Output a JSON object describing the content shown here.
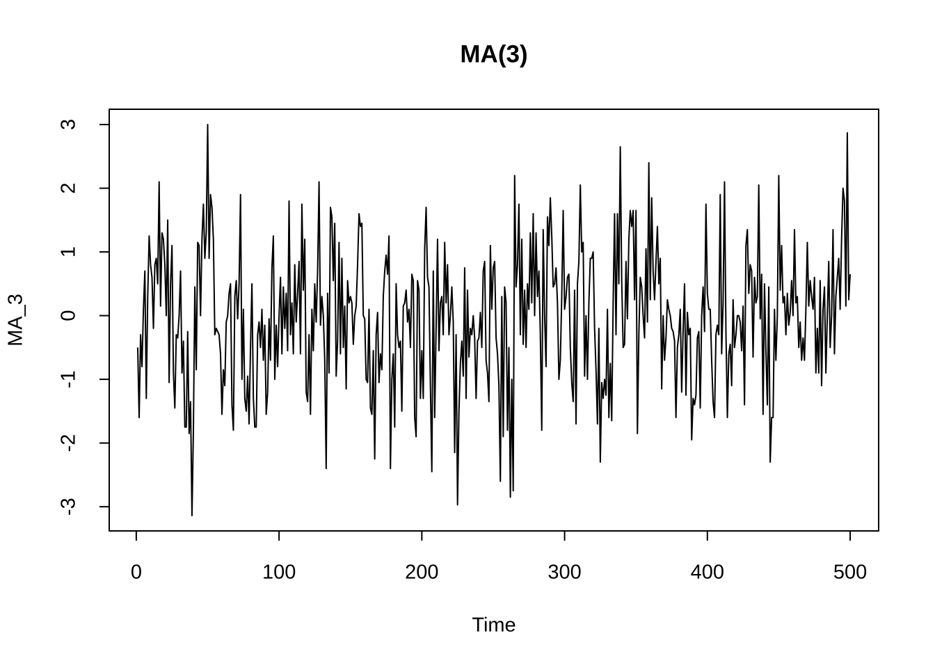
{
  "chart_data": {
    "type": "line",
    "title": "MA(3)",
    "xlabel": "Time",
    "ylabel": "MA_3",
    "xlim": [
      -18.96,
      519.96
    ],
    "ylim": [
      -3.38,
      3.24
    ],
    "xticks": [
      0,
      100,
      200,
      300,
      400,
      500
    ],
    "yticks": [
      -3,
      -2,
      -1,
      0,
      1,
      2,
      3
    ],
    "series": [
      {
        "name": "MA_3",
        "color": "#000000",
        "x": [
          1,
          2,
          3,
          4,
          5,
          6,
          7,
          8,
          9,
          10,
          11,
          12,
          13,
          14,
          15,
          16,
          17,
          18,
          19,
          20,
          21,
          22,
          23,
          24,
          25,
          26,
          27,
          28,
          29,
          30,
          31,
          32,
          33,
          34,
          35,
          36,
          37,
          38,
          39,
          40,
          41,
          42,
          43,
          44,
          45,
          46,
          47,
          48,
          49,
          50,
          51,
          52,
          53,
          54,
          55,
          56,
          57,
          58,
          59,
          60,
          61,
          62,
          63,
          64,
          65,
          66,
          67,
          68,
          69,
          70,
          71,
          72,
          73,
          74,
          75,
          76,
          77,
          78,
          79,
          80,
          81,
          82,
          83,
          84,
          85,
          86,
          87,
          88,
          89,
          90,
          91,
          92,
          93,
          94,
          95,
          96,
          97,
          98,
          99,
          100,
          101,
          102,
          103,
          104,
          105,
          106,
          107,
          108,
          109,
          110,
          111,
          112,
          113,
          114,
          115,
          116,
          117,
          118,
          119,
          120,
          121,
          122,
          123,
          124,
          125,
          126,
          127,
          128,
          129,
          130,
          131,
          132,
          133,
          134,
          135,
          136,
          137,
          138,
          139,
          140,
          141,
          142,
          143,
          144,
          145,
          146,
          147,
          148,
          149,
          150,
          151,
          152,
          153,
          154,
          155,
          156,
          157,
          158,
          159,
          160,
          161,
          162,
          163,
          164,
          165,
          166,
          167,
          168,
          169,
          170,
          171,
          172,
          173,
          174,
          175,
          176,
          177,
          178,
          179,
          180,
          181,
          182,
          183,
          184,
          185,
          186,
          187,
          188,
          189,
          190,
          191,
          192,
          193,
          194,
          195,
          196,
          197,
          198,
          199,
          200,
          201,
          202,
          203,
          204,
          205,
          206,
          207,
          208,
          209,
          210,
          211,
          212,
          213,
          214,
          215,
          216,
          217,
          218,
          219,
          220,
          221,
          222,
          223,
          224,
          225,
          226,
          227,
          228,
          229,
          230,
          231,
          232,
          233,
          234,
          235,
          236,
          237,
          238,
          239,
          240,
          241,
          242,
          243,
          244,
          245,
          246,
          247,
          248,
          249,
          250,
          251,
          252,
          253,
          254,
          255,
          256,
          257,
          258,
          259,
          260,
          261,
          262,
          263,
          264,
          265,
          266,
          267,
          268,
          269,
          270,
          271,
          272,
          273,
          274,
          275,
          276,
          277,
          278,
          279,
          280,
          281,
          282,
          283,
          284,
          285,
          286,
          287,
          288,
          289,
          290,
          291,
          292,
          293,
          294,
          295,
          296,
          297,
          298,
          299,
          300,
          301,
          302,
          303,
          304,
          305,
          306,
          307,
          308,
          309,
          310,
          311,
          312,
          313,
          314,
          315,
          316,
          317,
          318,
          319,
          320,
          321,
          322,
          323,
          324,
          325,
          326,
          327,
          328,
          329,
          330,
          331,
          332,
          333,
          334,
          335,
          336,
          337,
          338,
          339,
          340,
          341,
          342,
          343,
          344,
          345,
          346,
          347,
          348,
          349,
          350,
          351,
          352,
          353,
          354,
          355,
          356,
          357,
          358,
          359,
          360,
          361,
          362,
          363,
          364,
          365,
          366,
          367,
          368,
          369,
          370,
          371,
          372,
          373,
          374,
          375,
          376,
          377,
          378,
          379,
          380,
          381,
          382,
          383,
          384,
          385,
          386,
          387,
          388,
          389,
          390,
          391,
          392,
          393,
          394,
          395,
          396,
          397,
          398,
          399,
          400,
          401,
          402,
          403,
          404,
          405,
          406,
          407,
          408,
          409,
          410,
          411,
          412,
          413,
          414,
          415,
          416,
          417,
          418,
          419,
          420,
          421,
          422,
          423,
          424,
          425,
          426,
          427,
          428,
          429,
          430,
          431,
          432,
          433,
          434,
          435,
          436,
          437,
          438,
          439,
          440,
          441,
          442,
          443,
          444,
          445,
          446,
          447,
          448,
          449,
          450,
          451,
          452,
          453,
          454,
          455,
          456,
          457,
          458,
          459,
          460,
          461,
          462,
          463,
          464,
          465,
          466,
          467,
          468,
          469,
          470,
          471,
          472,
          473,
          474,
          475,
          476,
          477,
          478,
          479,
          480,
          481,
          482,
          483,
          484,
          485,
          486,
          487,
          488,
          489,
          490,
          491,
          492,
          493,
          494,
          495,
          496,
          497,
          498,
          499,
          500
        ],
        "values": [
          -0.5,
          -1.6,
          -0.3,
          -0.8,
          0.1,
          0.7,
          -1.3,
          0.3,
          1.25,
          0.8,
          0.6,
          -0.2,
          0.8,
          0.9,
          0.5,
          2.1,
          0.15,
          1.3,
          1.2,
          0.8,
          0.0,
          1.5,
          -1.05,
          0.5,
          1.1,
          -0.9,
          -1.45,
          -0.3,
          -0.35,
          0.0,
          0.7,
          -0.9,
          -0.4,
          -1.75,
          -1.75,
          -0.25,
          -1.85,
          -1.35,
          -3.14,
          -1.8,
          0.45,
          -0.85,
          1.15,
          1.1,
          0.0,
          1.2,
          1.75,
          0.9,
          1.3,
          3.0,
          0.9,
          1.9,
          1.7,
          1.2,
          -0.3,
          -0.2,
          -0.25,
          -0.3,
          -0.6,
          -1.55,
          -0.85,
          -1.1,
          -0.1,
          0.0,
          0.35,
          0.5,
          -1.4,
          -1.8,
          0.3,
          0.55,
          -0.05,
          0.5,
          1.9,
          -1.0,
          0.1,
          -1.3,
          -1.5,
          -0.95,
          -1.7,
          -0.5,
          0.5,
          -1.3,
          -1.75,
          -1.75,
          -0.3,
          -0.1,
          -0.5,
          0.1,
          -0.7,
          -0.15,
          -1.55,
          -1.2,
          -0.05,
          -0.7,
          0.75,
          1.25,
          -1.0,
          -0.15,
          -0.8,
          0.0,
          0.6,
          -0.6,
          0.45,
          -0.2,
          0.35,
          -0.55,
          1.8,
          -0.3,
          0.2,
          -0.6,
          0.8,
          -0.1,
          0.35,
          0.85,
          -0.6,
          1.75,
          0.4,
          1.2,
          -1.2,
          -1.35,
          -0.3,
          -1.55,
          0.1,
          -0.55,
          0.5,
          -0.1,
          0.7,
          2.1,
          -0.15,
          0.3,
          0.0,
          -0.7,
          -2.4,
          0.35,
          -0.9,
          1.7,
          1.55,
          0.55,
          1.45,
          -0.95,
          -0.4,
          1.15,
          -0.6,
          0.9,
          -0.5,
          0.15,
          -1.15,
          0.55,
          0.2,
          0.3,
          0.2,
          -0.45,
          0.0,
          0.15,
          0.8,
          1.6,
          1.4,
          1.45,
          0.0,
          -0.05,
          -1.0,
          -1.05,
          0.1,
          -1.45,
          -1.55,
          -0.55,
          -2.25,
          -0.3,
          0.05,
          -1.05,
          -0.6,
          -0.85,
          0.3,
          0.7,
          0.95,
          0.65,
          1.25,
          -2.4,
          -1.0,
          -0.6,
          -1.75,
          0.5,
          -0.3,
          -0.5,
          -0.4,
          -1.5,
          0.15,
          0.2,
          0.4,
          -0.1,
          0.1,
          -0.5,
          0.65,
          0.55,
          -1.6,
          -1.9,
          0.55,
          0.4,
          -1.3,
          -0.55,
          -1.3,
          1.05,
          1.7,
          0.6,
          0.45,
          -1.1,
          -2.45,
          0.7,
          -1.6,
          -0.2,
          1.2,
          -0.55,
          0.2,
          0.3,
          -0.3,
          1.15,
          0.2,
          0.8,
          -0.3,
          0.0,
          0.45,
          -0.1,
          -2.15,
          -0.3,
          -2.97,
          -1.5,
          -0.75,
          -0.4,
          -0.95,
          0.75,
          -1.3,
          0.4,
          -0.65,
          -0.2,
          -0.3,
          0.0,
          -0.35,
          -1.3,
          -0.4,
          -0.35,
          0.05,
          -0.5,
          0.7,
          0.85,
          -0.7,
          -0.9,
          -1.35,
          1.1,
          0.1,
          0.75,
          0.85,
          -0.35,
          -0.6,
          -1.1,
          -2.6,
          0.3,
          -1.9,
          0.45,
          0.2,
          -1.8,
          -0.5,
          -2.85,
          -1.0,
          -2.75,
          2.2,
          0.45,
          0.8,
          1.75,
          -0.3,
          1.2,
          -0.45,
          0.4,
          -0.5,
          0.5,
          0.1,
          1.3,
          0.2,
          1.6,
          0.0,
          1.3,
          0.3,
          0.7,
          -0.3,
          -1.8,
          1.35,
          0.0,
          -0.8,
          1.55,
          1.1,
          1.85,
          1.25,
          0.45,
          0.5,
          0.75,
          0.2,
          -1.0,
          -0.7,
          0.3,
          1.65,
          0.1,
          0.3,
          0.6,
          0.65,
          -0.5,
          -1.05,
          -1.35,
          0.4,
          -1.7,
          0.5,
          0.85,
          2.05,
          1.0,
          1.15,
          -0.95,
          0.0,
          -1.0,
          0.2,
          0.9,
          0.9,
          1.0,
          -0.2,
          -0.85,
          -1.7,
          -0.2,
          -2.3,
          -1.05,
          -1.3,
          -1.0,
          -1.25,
          0.1,
          -1.6,
          -0.75,
          -1.65,
          0.2,
          1.6,
          -0.3,
          1.6,
          0.5,
          2.65,
          0.55,
          -0.5,
          -0.45,
          0.85,
          -0.05,
          1.2,
          1.65,
          1.4,
          1.65,
          0.25,
          1.65,
          -1.85,
          -0.3,
          0.6,
          0.45,
          0.0,
          -0.35,
          1.05,
          -0.1,
          2.4,
          0.25,
          1.85,
          0.7,
          0.25,
          0.85,
          1.4,
          0.5,
          0.9,
          -1.15,
          0.0,
          -0.7,
          -0.35,
          0.25,
          0.1,
          0.0,
          -0.2,
          -0.25,
          -0.4,
          -1.6,
          -0.5,
          -0.3,
          0.1,
          -1.2,
          -0.25,
          0.5,
          -1.25,
          0.05,
          -0.3,
          -0.2,
          -1.95,
          -1.3,
          -1.4,
          -1.25,
          -0.35,
          -0.25,
          -1.45,
          0.0,
          0.45,
          -0.25,
          1.75,
          0.35,
          0.1,
          0.1,
          -0.7,
          -1.35,
          -1.6,
          -0.3,
          -0.15,
          -0.3,
          1.9,
          -0.6,
          0.2,
          2.1,
          -0.25,
          -1.6,
          -0.6,
          -0.45,
          -1.1,
          0.25,
          -0.5,
          -0.3,
          0.0,
          0.0,
          -0.1,
          -0.55,
          0.15,
          -1.4,
          1.1,
          1.35,
          0.35,
          0.8,
          0.7,
          -0.65,
          0.6,
          0.2,
          0.3,
          2.05,
          -0.05,
          0.65,
          -1.55,
          0.5,
          -0.55,
          -1.4,
          0.45,
          -2.3,
          -1.6,
          -1.6,
          0.1,
          -0.7,
          0.0,
          2.2,
          0.4,
          1.1,
          0.2,
          0.3,
          -0.3,
          0.35,
          -0.15,
          0.05,
          0.55,
          0.0,
          1.35,
          0.2,
          0.3,
          -0.5,
          -0.1,
          -0.7,
          -0.35,
          -0.7,
          0.1,
          1.15,
          0.15,
          0.55,
          0.3,
          0.1,
          0.6,
          -0.9,
          -0.2,
          -0.9,
          0.55,
          -1.1,
          0.1,
          0.45,
          -0.9,
          0.0,
          0.85,
          -0.5,
          0.0,
          1.35,
          -0.6,
          0.3,
          0.6,
          0.9,
          0.1,
          1.2,
          2.0,
          1.8,
          0.15,
          2.87,
          0.25,
          0.65
        ]
      }
    ]
  }
}
